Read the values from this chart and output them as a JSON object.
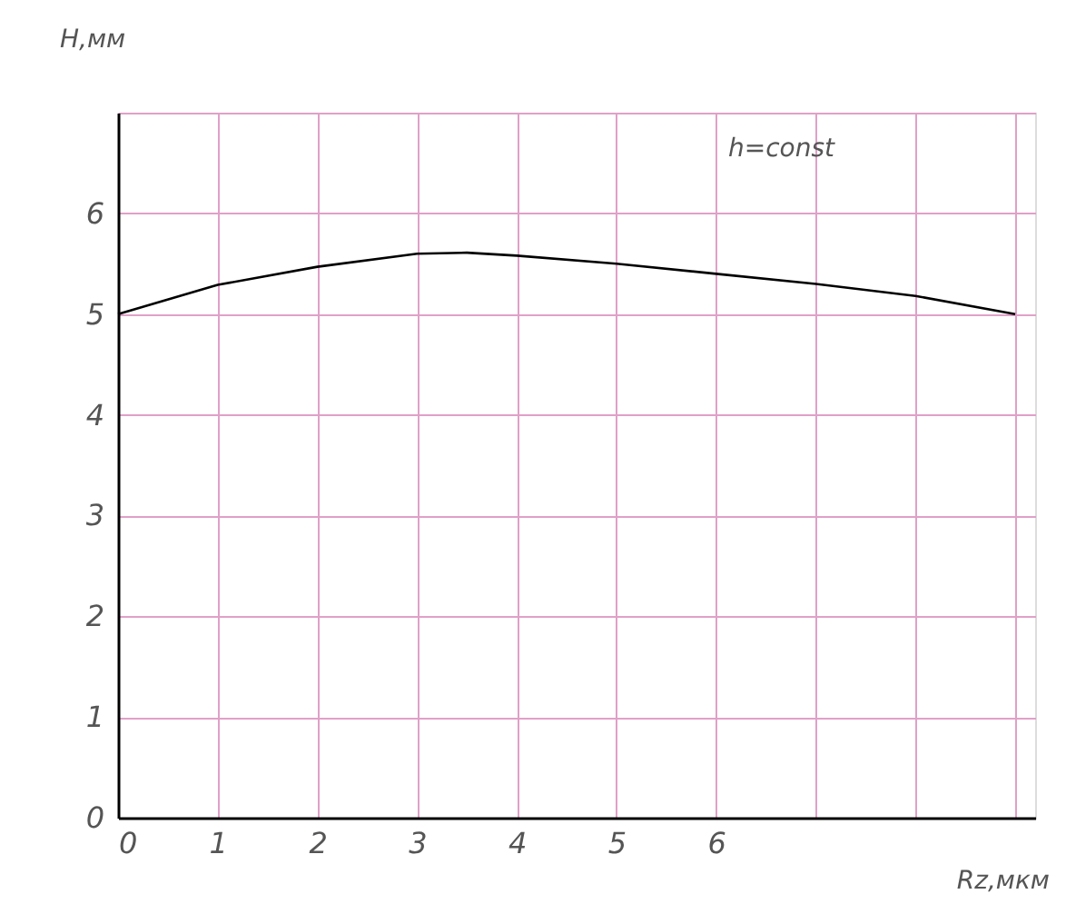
{
  "chart_data": {
    "type": "line",
    "xlabel": "Rz,мкм",
    "ylabel": "H,мм",
    "annotations": [
      "h=const"
    ],
    "x": [
      0,
      1,
      2,
      3,
      3.5,
      4,
      5,
      6,
      7,
      8,
      9
    ],
    "series": [
      {
        "color": "#000000",
        "values": [
          5.0,
          5.29,
          5.47,
          5.6,
          5.61,
          5.58,
          5.5,
          5.4,
          5.3,
          5.18,
          5.0
        ]
      }
    ],
    "xlim": [
      0,
      9.2
    ],
    "ylim": [
      0,
      7
    ],
    "xticks": [
      0,
      1,
      2,
      3,
      4,
      5,
      6,
      {
        "value": 7,
        "label": null
      },
      {
        "value": 8,
        "label": null
      },
      {
        "value": 9,
        "label": null
      }
    ],
    "yticks": [
      0,
      1,
      2,
      3,
      4,
      5,
      6,
      {
        "value": 7,
        "label": null
      }
    ],
    "grid": true,
    "marker": "none",
    "line_style": "solid"
  }
}
